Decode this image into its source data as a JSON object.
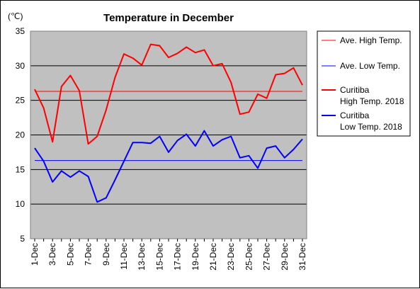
{
  "chart_data": {
    "type": "line",
    "title": "Temperature in December",
    "ylabel": "(℃)",
    "xlabel": "",
    "ylim": [
      5,
      35
    ],
    "yticks": [
      5,
      10,
      15,
      20,
      25,
      30,
      35
    ],
    "grid": true,
    "legend_position": "right",
    "x": [
      "1-Dec",
      "2-Dec",
      "3-Dec",
      "4-Dec",
      "5-Dec",
      "6-Dec",
      "7-Dec",
      "8-Dec",
      "9-Dec",
      "10-Dec",
      "11-Dec",
      "12-Dec",
      "13-Dec",
      "14-Dec",
      "15-Dec",
      "16-Dec",
      "17-Dec",
      "18-Dec",
      "19-Dec",
      "20-Dec",
      "21-Dec",
      "22-Dec",
      "23-Dec",
      "24-Dec",
      "25-Dec",
      "26-Dec",
      "27-Dec",
      "28-Dec",
      "29-Dec",
      "30-Dec",
      "31-Dec"
    ],
    "x_tick_labels": [
      "1-Dec",
      "3-Dec",
      "5-Dec",
      "7-Dec",
      "9-Dec",
      "11-Dec",
      "13-Dec",
      "15-Dec",
      "17-Dec",
      "19-Dec",
      "21-Dec",
      "23-Dec",
      "25-Dec",
      "27-Dec",
      "29-Dec",
      "31-Dec"
    ],
    "series": [
      {
        "name": "Ave. High Temp.",
        "label_lines": [
          "Ave. High Temp."
        ],
        "color": "#ff0000",
        "stroke": "thin",
        "values": [
          26.3,
          26.3,
          26.3,
          26.3,
          26.3,
          26.3,
          26.3,
          26.3,
          26.3,
          26.3,
          26.3,
          26.3,
          26.3,
          26.3,
          26.3,
          26.3,
          26.3,
          26.3,
          26.3,
          26.3,
          26.3,
          26.3,
          26.3,
          26.3,
          26.3,
          26.3,
          26.3,
          26.3,
          26.3,
          26.3,
          26.3
        ]
      },
      {
        "name": "Ave. Low Temp.",
        "label_lines": [
          "Ave. Low Temp."
        ],
        "color": "#0000ff",
        "stroke": "thin",
        "values": [
          16.3,
          16.3,
          16.3,
          16.3,
          16.3,
          16.3,
          16.3,
          16.3,
          16.3,
          16.3,
          16.3,
          16.3,
          16.3,
          16.3,
          16.3,
          16.3,
          16.3,
          16.3,
          16.3,
          16.3,
          16.3,
          16.3,
          16.3,
          16.3,
          16.3,
          16.3,
          16.3,
          16.3,
          16.3,
          16.3,
          16.3
        ]
      },
      {
        "name": "Curitiba High Temp. 2018",
        "label_lines": [
          "Curitiba",
          "High Temp. 2018"
        ],
        "color": "#ff0000",
        "stroke": "thick",
        "values": [
          26.6,
          23.9,
          19.0,
          27.0,
          28.6,
          26.4,
          18.7,
          19.8,
          23.6,
          28.3,
          31.7,
          31.1,
          30.1,
          33.1,
          32.9,
          31.2,
          31.8,
          32.7,
          31.9,
          32.3,
          30.0,
          30.3,
          27.6,
          23.0,
          23.3,
          25.9,
          25.3,
          28.7,
          28.9,
          29.7,
          27.2
        ]
      },
      {
        "name": "Curitiba Low Temp. 2018",
        "label_lines": [
          "Curitiba",
          "Low Temp. 2018"
        ],
        "color": "#0000ff",
        "stroke": "thick",
        "values": [
          18.1,
          16.2,
          13.2,
          14.8,
          13.9,
          14.8,
          14.0,
          10.3,
          10.9,
          13.5,
          16.2,
          18.9,
          18.9,
          18.8,
          19.8,
          17.5,
          19.2,
          20.1,
          18.4,
          20.6,
          18.4,
          19.3,
          19.8,
          16.7,
          17.0,
          15.2,
          18.1,
          18.4,
          16.7,
          17.9,
          19.4
        ]
      }
    ]
  }
}
